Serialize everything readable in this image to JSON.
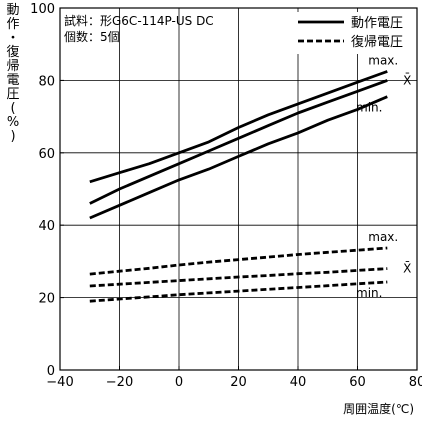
{
  "y_axis_label": [
    "動",
    "作",
    "・",
    "復",
    "帰",
    "電",
    "圧",
    "(",
    "%",
    ")"
  ],
  "x_axis_label": "周囲温度(℃)",
  "sample": {
    "line1": "試料：形G6C-114P-US  DC",
    "line2": "個数：5個"
  },
  "legend": {
    "operate": "動作電圧",
    "release": "復帰電圧"
  },
  "chart_data": {
    "type": "line",
    "xlim": [
      -40,
      80
    ],
    "ylim": [
      0,
      100
    ],
    "x_ticks": [
      "−40",
      "−20",
      "0",
      "20",
      "40",
      "60",
      "80"
    ],
    "y_ticks": [
      "0",
      "20",
      "40",
      "60",
      "80",
      "100"
    ],
    "x_tick_values": [
      -40,
      -20,
      0,
      20,
      40,
      60,
      80
    ],
    "y_tick_values": [
      0,
      20,
      40,
      60,
      80,
      100
    ],
    "grid": true,
    "series": [
      {
        "group": "operate",
        "style": "solid",
        "label": "max.",
        "x": [
          -30,
          -20,
          -10,
          0,
          10,
          20,
          30,
          40,
          50,
          60,
          70
        ],
        "y": [
          52,
          54.5,
          57,
          60,
          63,
          67,
          70.5,
          73.5,
          76.5,
          79.5,
          82.5
        ]
      },
      {
        "group": "operate",
        "style": "solid",
        "label": "X̄",
        "x": [
          -30,
          -20,
          -10,
          0,
          10,
          20,
          30,
          40,
          50,
          60,
          70
        ],
        "y": [
          46,
          50,
          53.5,
          57,
          60.5,
          64,
          67.5,
          71,
          74,
          77,
          80
        ]
      },
      {
        "group": "operate",
        "style": "solid",
        "label": "min.",
        "x": [
          -30,
          -20,
          -10,
          0,
          10,
          20,
          30,
          40,
          50,
          60,
          70
        ],
        "y": [
          42,
          45.5,
          49,
          52.5,
          55.5,
          59,
          62.5,
          65.5,
          69,
          72,
          75.5
        ]
      },
      {
        "group": "release",
        "style": "dashed",
        "label": "max.",
        "x": [
          -30,
          -20,
          -10,
          0,
          10,
          20,
          30,
          40,
          50,
          60,
          70
        ],
        "y": [
          26.5,
          27.3,
          28.1,
          29,
          29.8,
          30.5,
          31.2,
          31.9,
          32.5,
          33.1,
          33.7
        ]
      },
      {
        "group": "release",
        "style": "dashed",
        "label": "X̄",
        "x": [
          -30,
          -20,
          -10,
          0,
          10,
          20,
          30,
          40,
          50,
          60,
          70
        ],
        "y": [
          23.2,
          23.7,
          24.2,
          24.7,
          25.2,
          25.7,
          26.1,
          26.6,
          27,
          27.5,
          28
        ]
      },
      {
        "group": "release",
        "style": "dashed",
        "label": "min.",
        "x": [
          -30,
          -20,
          -10,
          0,
          10,
          20,
          30,
          40,
          50,
          60,
          70
        ],
        "y": [
          19,
          19.6,
          20.2,
          20.8,
          21.3,
          21.8,
          22.3,
          22.8,
          23.3,
          23.8,
          24.3
        ]
      }
    ]
  }
}
